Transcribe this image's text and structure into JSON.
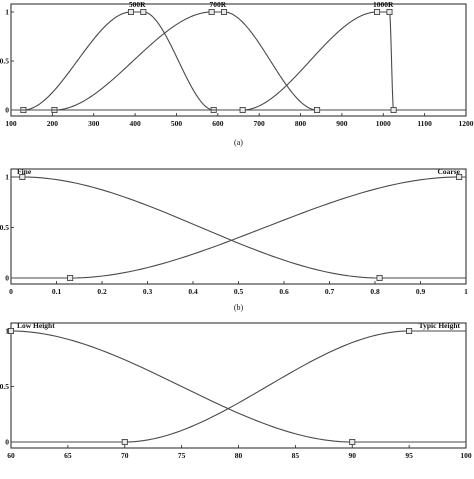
{
  "chart_data": [
    {
      "type": "line",
      "id": "a",
      "caption": "(a)",
      "xlim": [
        100,
        1200
      ],
      "ylim": [
        0,
        1
      ],
      "xticks": [
        "100",
        "200",
        "300",
        "400",
        "500",
        "600",
        "700",
        "800",
        "900",
        "1000",
        "1100",
        "1200"
      ],
      "yticks": [
        "0",
        "0.5",
        "1"
      ],
      "grid": false,
      "series": [
        {
          "name": "500R",
          "shape": "pi",
          "points": [
            [
              100,
              0
            ],
            [
              130,
              0
            ],
            [
              390,
              1
            ],
            [
              420,
              1
            ],
            [
              590,
              0
            ],
            [
              1200,
              0
            ]
          ],
          "markers": [
            [
              130,
              0
            ],
            [
              390,
              1
            ],
            [
              420,
              1
            ],
            [
              590,
              0
            ]
          ]
        },
        {
          "name": "700R",
          "shape": "pi",
          "points": [
            [
              100,
              0
            ],
            [
              205,
              0
            ],
            [
              585,
              1
            ],
            [
              615,
              1
            ],
            [
              840,
              0
            ],
            [
              1200,
              0
            ]
          ],
          "markers": [
            [
              205,
              0
            ],
            [
              585,
              1
            ],
            [
              615,
              1
            ],
            [
              840,
              0
            ]
          ]
        },
        {
          "name": "1000R",
          "shape": "pi",
          "points": [
            [
              100,
              0
            ],
            [
              660,
              0
            ],
            [
              985,
              1
            ],
            [
              1015,
              1
            ],
            [
              1025,
              0
            ],
            [
              1200,
              0
            ]
          ],
          "markers": [
            [
              660,
              0
            ],
            [
              985,
              1
            ],
            [
              1015,
              1
            ],
            [
              1025,
              0
            ]
          ]
        }
      ]
    },
    {
      "type": "line",
      "id": "b",
      "caption": "(b)",
      "xlim": [
        0,
        1
      ],
      "ylim": [
        0,
        1
      ],
      "xticks": [
        "0",
        "0.1",
        "0.2",
        "0.3",
        "0.4",
        "0.5",
        "0.6",
        "0.7",
        "0.8",
        "0.9",
        "1"
      ],
      "yticks": [
        "0",
        "0.5",
        "1"
      ],
      "grid": false,
      "series": [
        {
          "name": "Fine",
          "shape": "z",
          "points": [
            [
              0,
              1
            ],
            [
              0.025,
              1
            ],
            [
              0.81,
              0
            ],
            [
              1,
              0
            ]
          ],
          "markers": [
            [
              0.025,
              1
            ],
            [
              0.81,
              0
            ]
          ]
        },
        {
          "name": "Coarse",
          "shape": "s",
          "points": [
            [
              0,
              0
            ],
            [
              0.13,
              0
            ],
            [
              0.985,
              1
            ],
            [
              1,
              1
            ]
          ],
          "markers": [
            [
              0.13,
              0
            ],
            [
              0.985,
              1
            ]
          ]
        }
      ]
    },
    {
      "type": "line",
      "id": "c",
      "caption": "",
      "xlim": [
        60,
        100
      ],
      "ylim": [
        0,
        1
      ],
      "xticks": [
        "60",
        "65",
        "70",
        "75",
        "80",
        "85",
        "90",
        "95",
        "100"
      ],
      "yticks": [
        "0",
        "0.5",
        "1"
      ],
      "grid": false,
      "series": [
        {
          "name": "Low Height",
          "shape": "z",
          "points": [
            [
              60,
              1
            ],
            [
              60,
              1
            ],
            [
              90,
              0
            ],
            [
              100,
              0
            ]
          ],
          "markers": [
            [
              60,
              1
            ],
            [
              90,
              0
            ]
          ]
        },
        {
          "name": "Typic Height",
          "shape": "s",
          "points": [
            [
              60,
              0
            ],
            [
              70,
              0
            ],
            [
              95,
              1
            ],
            [
              100,
              1
            ]
          ],
          "markers": [
            [
              70,
              0
            ],
            [
              95,
              1
            ]
          ]
        }
      ]
    }
  ],
  "ui": {
    "curve_color": "#4a4a4a",
    "marker_fill": "#e9e9e9",
    "axis_color": "#222222"
  }
}
